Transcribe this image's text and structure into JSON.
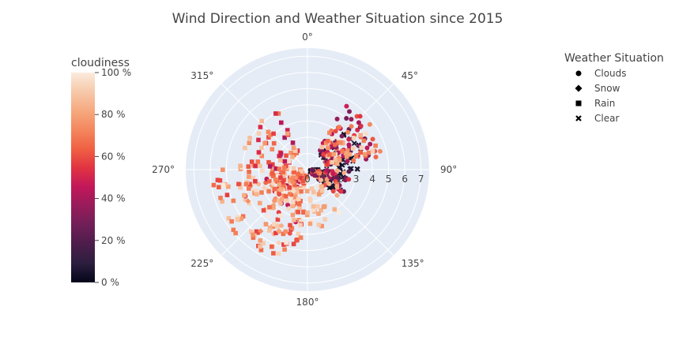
{
  "chart_data": {
    "type": "scatter",
    "subtype": "polar",
    "title": "Wind Direction and Weather Situation since 2015",
    "angular_axis": {
      "direction": "clockwise",
      "rotation_zero": "top",
      "ticks": [
        "0°",
        "45°",
        "90°",
        "135°",
        "180°",
        "225°",
        "270°",
        "315°"
      ]
    },
    "radial_axis": {
      "range": [
        0,
        7.5
      ],
      "tick_labels": [
        "0",
        "1",
        "2",
        "3",
        "4",
        "5",
        "6",
        "7"
      ],
      "angle": "90°"
    },
    "colorbar": {
      "title": "cloudiness",
      "range": [
        0,
        100
      ],
      "ticks": [
        "0 %",
        "20 %",
        "40 %",
        "60 %",
        "80 %",
        "100 %"
      ],
      "tick_values": [
        0,
        20,
        40,
        60,
        80,
        100
      ],
      "colorscale": [
        "#03051a",
        "#2c1e3e",
        "#4c1d4b",
        "#701f57",
        "#971c5b",
        "#c1175a",
        "#e13342",
        "#f06043",
        "#f4875e",
        "#f6a97f",
        "#f7c9aa",
        "#faebdd"
      ]
    },
    "legend": {
      "title": "Weather Situation",
      "placement": "top-right",
      "entries": [
        {
          "name": "Clouds",
          "symbol": "circle"
        },
        {
          "name": "Snow",
          "symbol": "diamond"
        },
        {
          "name": "Rain",
          "symbol": "square"
        },
        {
          "name": "Clear",
          "symbol": "x"
        }
      ]
    },
    "clusters": [
      {
        "series": "Clear",
        "theta": [
          90,
          130
        ],
        "r": [
          0.2,
          2.4
        ],
        "cloud": [
          0,
          8
        ],
        "n": 90
      },
      {
        "series": "Clear",
        "theta": [
          40,
          90
        ],
        "r": [
          1.2,
          3.8
        ],
        "cloud": [
          0,
          10
        ],
        "n": 40
      },
      {
        "series": "Clouds",
        "theta": [
          30,
          80
        ],
        "r": [
          1.2,
          4.8
        ],
        "cloud": [
          20,
          75
        ],
        "n": 90
      },
      {
        "series": "Clouds",
        "theta": [
          90,
          135
        ],
        "r": [
          0.3,
          3.0
        ],
        "cloud": [
          20,
          90
        ],
        "n": 60
      },
      {
        "series": "Clouds",
        "theta": [
          190,
          260
        ],
        "r": [
          0.5,
          4.5
        ],
        "cloud": [
          40,
          100
        ],
        "n": 60
      },
      {
        "series": "Rain",
        "theta": [
          185,
          275
        ],
        "r": [
          0.4,
          6.0
        ],
        "cloud": [
          55,
          100
        ],
        "n": 200
      },
      {
        "series": "Rain",
        "theta": [
          270,
          335
        ],
        "r": [
          1.2,
          4.2
        ],
        "cloud": [
          40,
          100
        ],
        "n": 60
      },
      {
        "series": "Rain",
        "theta": [
          30,
          80
        ],
        "r": [
          1.5,
          4.5
        ],
        "cloud": [
          60,
          100
        ],
        "n": 40
      },
      {
        "series": "Rain",
        "theta": [
          140,
          185
        ],
        "r": [
          1.2,
          3.8
        ],
        "cloud": [
          75,
          100
        ],
        "n": 30
      },
      {
        "series": "Snow",
        "theta": [
          200,
          255
        ],
        "r": [
          1.0,
          5.0
        ],
        "cloud": [
          70,
          100
        ],
        "n": 15
      }
    ]
  }
}
